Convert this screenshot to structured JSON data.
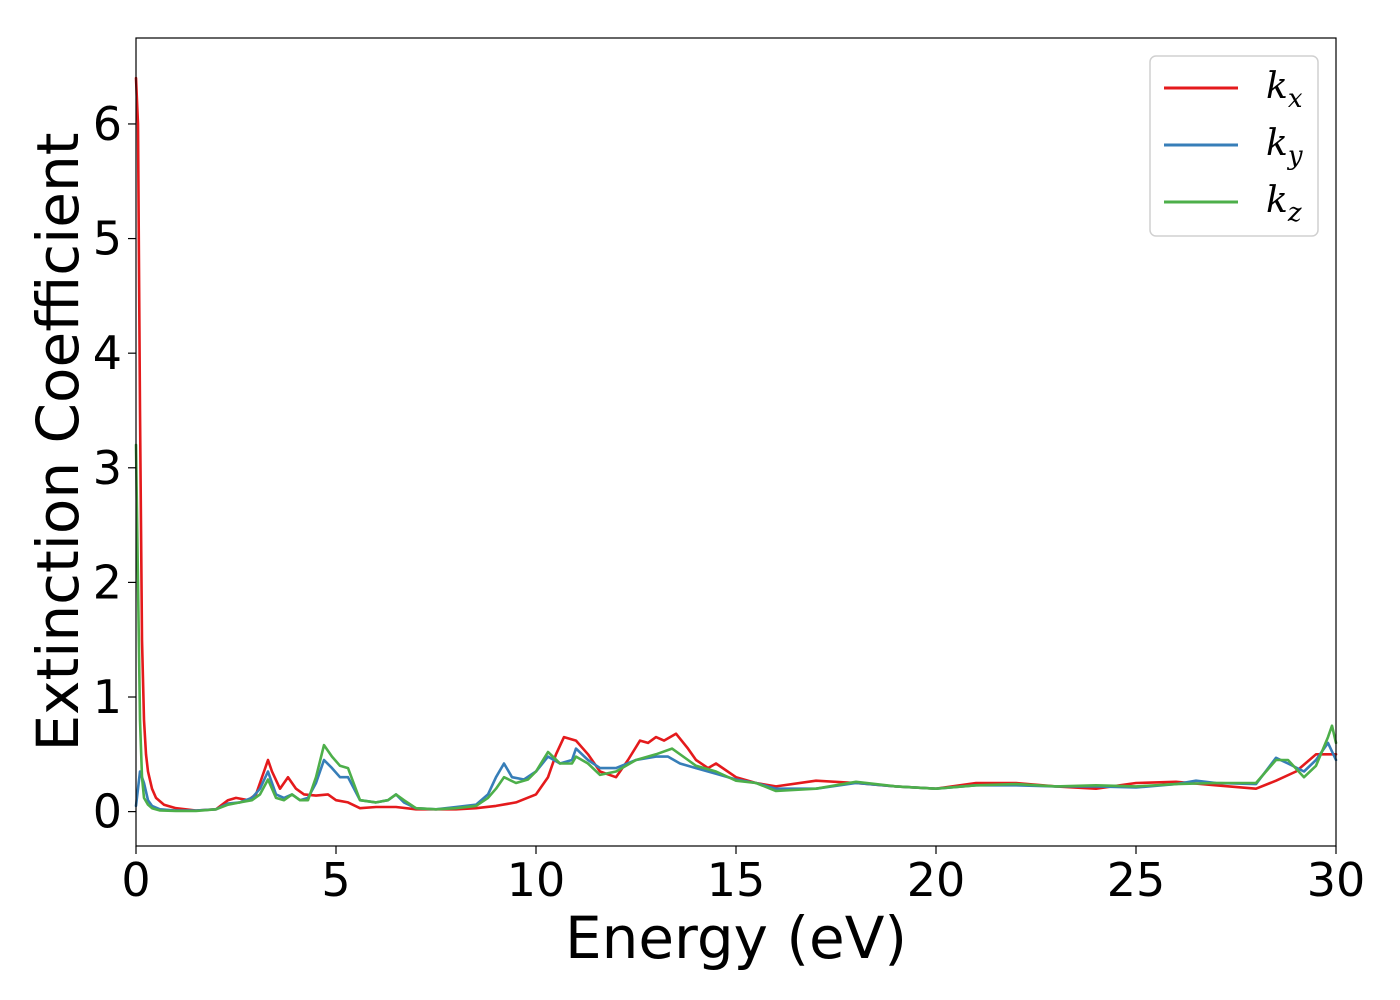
{
  "chart_data": {
    "type": "line",
    "title": "",
    "xlabel": "Energy (eV)",
    "ylabel": "Extinction Coefficient",
    "xlim": [
      0,
      30
    ],
    "ylim": [
      -0.3,
      6.75
    ],
    "xticks": [
      0,
      5,
      10,
      15,
      20,
      25,
      30
    ],
    "yticks": [
      0,
      1,
      2,
      3,
      4,
      5,
      6
    ],
    "grid": false,
    "legend_position": "top-right",
    "series": [
      {
        "name": "k_x",
        "label_base": "k",
        "label_sub": "x",
        "color": "#e41a1c",
        "x": [
          0,
          0.05,
          0.1,
          0.15,
          0.2,
          0.25,
          0.3,
          0.4,
          0.5,
          0.7,
          1.0,
          1.5,
          2.0,
          2.3,
          2.5,
          2.8,
          3.0,
          3.2,
          3.3,
          3.4,
          3.6,
          3.8,
          4.0,
          4.2,
          4.5,
          4.8,
          5.0,
          5.3,
          5.6,
          6.0,
          6.5,
          7.0,
          7.5,
          8.0,
          8.5,
          9.0,
          9.5,
          10.0,
          10.3,
          10.5,
          10.7,
          11.0,
          11.3,
          11.6,
          12.0,
          12.3,
          12.6,
          12.8,
          13.0,
          13.2,
          13.5,
          13.8,
          14.0,
          14.3,
          14.5,
          15.0,
          15.5,
          16.0,
          17.0,
          18.0,
          19.0,
          20.0,
          21.0,
          22.0,
          23.0,
          24.0,
          25.0,
          26.0,
          27.0,
          28.0,
          28.5,
          29.0,
          29.5,
          30.0
        ],
        "y": [
          6.4,
          6.0,
          3.5,
          1.5,
          0.8,
          0.5,
          0.35,
          0.2,
          0.12,
          0.06,
          0.03,
          0.01,
          0.02,
          0.1,
          0.12,
          0.1,
          0.15,
          0.35,
          0.45,
          0.35,
          0.2,
          0.3,
          0.2,
          0.15,
          0.14,
          0.15,
          0.1,
          0.08,
          0.03,
          0.04,
          0.04,
          0.02,
          0.02,
          0.02,
          0.03,
          0.05,
          0.08,
          0.15,
          0.3,
          0.5,
          0.65,
          0.62,
          0.5,
          0.35,
          0.3,
          0.45,
          0.62,
          0.6,
          0.65,
          0.62,
          0.68,
          0.55,
          0.45,
          0.38,
          0.42,
          0.3,
          0.25,
          0.22,
          0.27,
          0.25,
          0.22,
          0.2,
          0.25,
          0.25,
          0.22,
          0.2,
          0.25,
          0.26,
          0.23,
          0.2,
          0.27,
          0.35,
          0.5,
          0.5
        ]
      },
      {
        "name": "k_y",
        "label_base": "k",
        "label_sub": "y",
        "color": "#377eb8",
        "x": [
          0,
          0.05,
          0.1,
          0.2,
          0.3,
          0.4,
          0.6,
          1.0,
          1.5,
          2.0,
          2.3,
          2.6,
          2.9,
          3.1,
          3.3,
          3.5,
          3.7,
          3.9,
          4.1,
          4.3,
          4.5,
          4.7,
          4.9,
          5.1,
          5.3,
          5.6,
          6.0,
          6.3,
          6.5,
          6.7,
          7.0,
          7.5,
          8.0,
          8.5,
          8.8,
          9.0,
          9.2,
          9.4,
          9.7,
          10.0,
          10.3,
          10.6,
          10.9,
          11.0,
          11.3,
          11.6,
          12.0,
          12.5,
          13.0,
          13.3,
          13.6,
          14.0,
          14.5,
          15.0,
          15.5,
          16.0,
          17.0,
          18.0,
          19.0,
          20.0,
          21.0,
          22.0,
          23.0,
          24.0,
          25.0,
          26.0,
          26.5,
          27.0,
          28.0,
          28.5,
          28.8,
          29.2,
          29.5,
          29.8,
          30.0
        ],
        "y": [
          0.05,
          0.2,
          0.35,
          0.25,
          0.1,
          0.05,
          0.02,
          0.01,
          0.01,
          0.02,
          0.07,
          0.08,
          0.12,
          0.2,
          0.35,
          0.15,
          0.12,
          0.15,
          0.1,
          0.12,
          0.25,
          0.45,
          0.38,
          0.3,
          0.3,
          0.1,
          0.08,
          0.1,
          0.15,
          0.08,
          0.03,
          0.02,
          0.04,
          0.06,
          0.15,
          0.3,
          0.42,
          0.3,
          0.28,
          0.35,
          0.48,
          0.42,
          0.45,
          0.55,
          0.45,
          0.38,
          0.38,
          0.45,
          0.48,
          0.48,
          0.42,
          0.38,
          0.33,
          0.28,
          0.25,
          0.2,
          0.2,
          0.25,
          0.22,
          0.2,
          0.23,
          0.23,
          0.22,
          0.22,
          0.21,
          0.24,
          0.27,
          0.25,
          0.24,
          0.47,
          0.42,
          0.35,
          0.45,
          0.6,
          0.45
        ]
      },
      {
        "name": "k_z",
        "label_base": "k",
        "label_sub": "z",
        "color": "#4daf4a",
        "x": [
          0,
          0.05,
          0.1,
          0.15,
          0.2,
          0.3,
          0.4,
          0.6,
          1.0,
          1.5,
          2.0,
          2.3,
          2.6,
          2.9,
          3.1,
          3.3,
          3.5,
          3.7,
          3.9,
          4.1,
          4.3,
          4.5,
          4.7,
          4.9,
          5.1,
          5.3,
          5.6,
          6.0,
          6.3,
          6.5,
          6.7,
          7.0,
          7.5,
          8.0,
          8.5,
          8.8,
          9.0,
          9.2,
          9.5,
          9.8,
          10.0,
          10.3,
          10.6,
          10.9,
          11.0,
          11.3,
          11.6,
          12.0,
          12.5,
          13.0,
          13.4,
          13.8,
          14.0,
          14.5,
          15.0,
          15.5,
          16.0,
          17.0,
          18.0,
          19.0,
          20.0,
          21.0,
          22.0,
          23.0,
          24.0,
          25.0,
          26.0,
          27.0,
          28.0,
          28.5,
          28.8,
          29.2,
          29.5,
          29.8,
          29.9,
          30.0
        ],
        "y": [
          3.2,
          2.0,
          0.8,
          0.3,
          0.12,
          0.06,
          0.03,
          0.01,
          0.005,
          0.005,
          0.02,
          0.06,
          0.08,
          0.1,
          0.15,
          0.28,
          0.12,
          0.1,
          0.15,
          0.1,
          0.1,
          0.3,
          0.58,
          0.48,
          0.4,
          0.38,
          0.1,
          0.08,
          0.1,
          0.15,
          0.1,
          0.03,
          0.02,
          0.03,
          0.05,
          0.12,
          0.2,
          0.3,
          0.25,
          0.28,
          0.35,
          0.52,
          0.42,
          0.42,
          0.48,
          0.42,
          0.32,
          0.35,
          0.45,
          0.5,
          0.55,
          0.45,
          0.4,
          0.35,
          0.27,
          0.25,
          0.18,
          0.2,
          0.26,
          0.22,
          0.2,
          0.23,
          0.24,
          0.22,
          0.23,
          0.22,
          0.24,
          0.25,
          0.25,
          0.45,
          0.45,
          0.3,
          0.4,
          0.65,
          0.75,
          0.6
        ]
      }
    ]
  }
}
